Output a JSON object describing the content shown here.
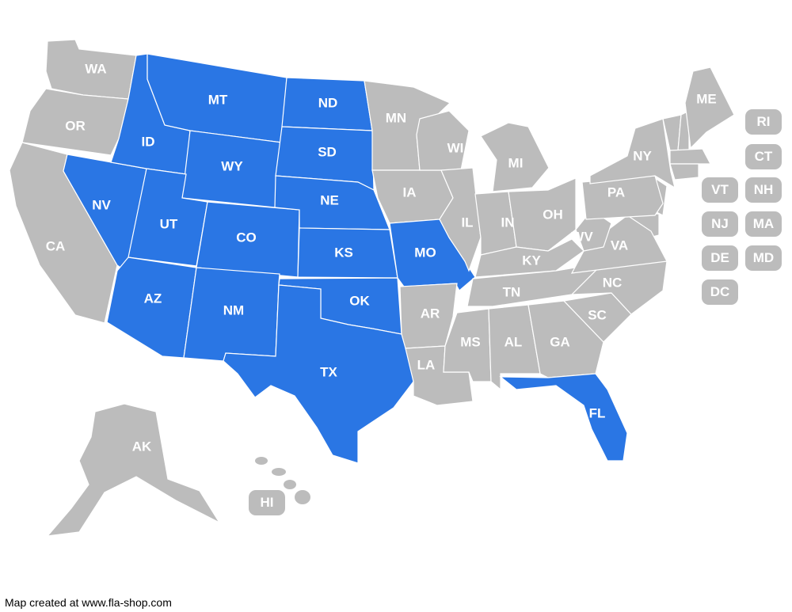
{
  "colors": {
    "highlighted": "#2a76e4",
    "default": "#bcbcbc",
    "border": "#ffffff",
    "label": "#ffffff"
  },
  "states": [
    {
      "abbr": "WA",
      "highlighted": false
    },
    {
      "abbr": "OR",
      "highlighted": false
    },
    {
      "abbr": "CA",
      "highlighted": false
    },
    {
      "abbr": "NV",
      "highlighted": true
    },
    {
      "abbr": "ID",
      "highlighted": true
    },
    {
      "abbr": "MT",
      "highlighted": true
    },
    {
      "abbr": "WY",
      "highlighted": true
    },
    {
      "abbr": "UT",
      "highlighted": true
    },
    {
      "abbr": "CO",
      "highlighted": true
    },
    {
      "abbr": "AZ",
      "highlighted": true
    },
    {
      "abbr": "NM",
      "highlighted": true
    },
    {
      "abbr": "ND",
      "highlighted": true
    },
    {
      "abbr": "SD",
      "highlighted": true
    },
    {
      "abbr": "NE",
      "highlighted": true
    },
    {
      "abbr": "KS",
      "highlighted": true
    },
    {
      "abbr": "OK",
      "highlighted": true
    },
    {
      "abbr": "TX",
      "highlighted": true
    },
    {
      "abbr": "MN",
      "highlighted": false
    },
    {
      "abbr": "IA",
      "highlighted": false
    },
    {
      "abbr": "MO",
      "highlighted": true
    },
    {
      "abbr": "AR",
      "highlighted": false
    },
    {
      "abbr": "LA",
      "highlighted": false
    },
    {
      "abbr": "WI",
      "highlighted": false
    },
    {
      "abbr": "IL",
      "highlighted": false
    },
    {
      "abbr": "MI",
      "highlighted": false
    },
    {
      "abbr": "IN",
      "highlighted": false
    },
    {
      "abbr": "OH",
      "highlighted": false
    },
    {
      "abbr": "KY",
      "highlighted": false
    },
    {
      "abbr": "TN",
      "highlighted": false
    },
    {
      "abbr": "MS",
      "highlighted": false
    },
    {
      "abbr": "AL",
      "highlighted": false
    },
    {
      "abbr": "GA",
      "highlighted": false
    },
    {
      "abbr": "FL",
      "highlighted": true
    },
    {
      "abbr": "SC",
      "highlighted": false
    },
    {
      "abbr": "NC",
      "highlighted": false
    },
    {
      "abbr": "VA",
      "highlighted": false
    },
    {
      "abbr": "WV",
      "highlighted": false
    },
    {
      "abbr": "PA",
      "highlighted": false
    },
    {
      "abbr": "NY",
      "highlighted": false
    },
    {
      "abbr": "ME",
      "highlighted": false
    },
    {
      "abbr": "AK",
      "highlighted": false
    }
  ],
  "small_states": [
    {
      "abbr": "RI",
      "highlighted": false
    },
    {
      "abbr": "CT",
      "highlighted": false
    },
    {
      "abbr": "VT",
      "highlighted": false
    },
    {
      "abbr": "NH",
      "highlighted": false
    },
    {
      "abbr": "NJ",
      "highlighted": false
    },
    {
      "abbr": "MA",
      "highlighted": false
    },
    {
      "abbr": "DE",
      "highlighted": false
    },
    {
      "abbr": "MD",
      "highlighted": false
    },
    {
      "abbr": "DC",
      "highlighted": false
    },
    {
      "abbr": "HI",
      "highlighted": false
    }
  ],
  "footer": "Map created at www.fla-shop.com"
}
